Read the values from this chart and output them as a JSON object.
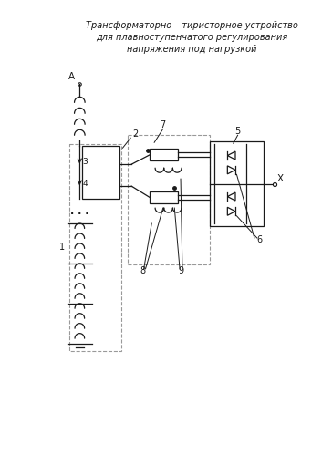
{
  "title_line1": "Трансформаторно – тиристорное устройство",
  "title_line2": "для плавноступенчатого регулирования",
  "title_line3": "напряжения под нагрузкой",
  "bg_color": "#ffffff",
  "line_color": "#1a1a1a",
  "dashed_color": "#999999",
  "font_size_title": 7.0,
  "font_size_label": 7.0
}
